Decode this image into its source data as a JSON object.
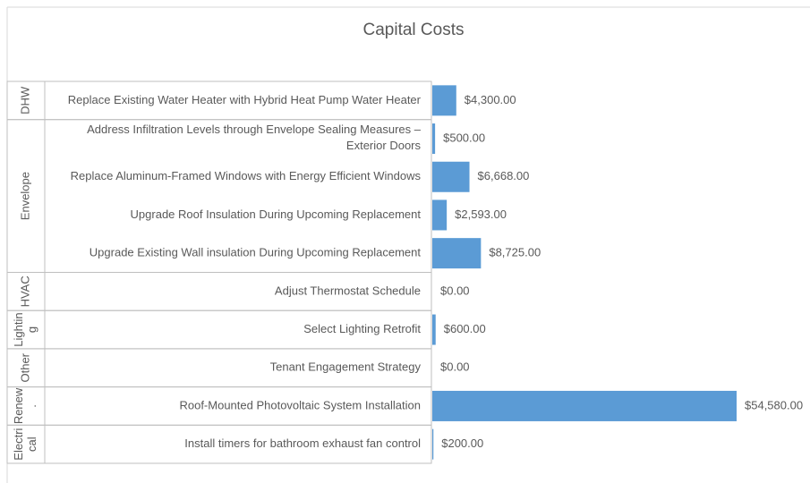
{
  "chart_data": {
    "type": "bar",
    "title": "Capital Costs",
    "color": "#5b9bd5",
    "groups": [
      {
        "name": [
          "DHW"
        ],
        "categories": [
          "Replace Existing Water Heater with Hybrid Heat Pump Water Heater"
        ],
        "values": [
          4300
        ],
        "value_labels": [
          "$4,300.00"
        ]
      },
      {
        "name": [
          "Envelope"
        ],
        "categories": [
          "Address Infiltration Levels through Envelope Sealing Measures – Exterior Doors",
          "Replace Aluminum-Framed Windows with Energy Efficient Windows",
          "Upgrade Roof Insulation During Upcoming Replacement",
          "Upgrade Existing Wall insulation During Upcoming Replacement"
        ],
        "values": [
          500,
          6668,
          2593,
          8725
        ],
        "value_labels": [
          "$500.00",
          "$6,668.00",
          "$2,593.00",
          "$8,725.00"
        ]
      },
      {
        "name": [
          "HVAC"
        ],
        "categories": [
          "Adjust Thermostat Schedule"
        ],
        "values": [
          0
        ],
        "value_labels": [
          "$0.00"
        ]
      },
      {
        "name": [
          "Lightin",
          "g"
        ],
        "categories": [
          "Select Lighting Retrofit"
        ],
        "values": [
          600
        ],
        "value_labels": [
          "$600.00"
        ]
      },
      {
        "name": [
          "Other"
        ],
        "categories": [
          "Tenant Engagement Strategy"
        ],
        "values": [
          0
        ],
        "value_labels": [
          "$0.00"
        ]
      },
      {
        "name": [
          "Renew",
          "."
        ],
        "categories": [
          "Roof-Mounted Photovoltaic System Installation"
        ],
        "values": [
          54580
        ],
        "value_labels": [
          "$54,580.00"
        ]
      },
      {
        "name": [
          "Electri",
          "cal"
        ],
        "categories": [
          "Install timers for bathroom exhaust fan control"
        ],
        "values": [
          200
        ],
        "value_labels": [
          "$200.00"
        ]
      }
    ]
  }
}
